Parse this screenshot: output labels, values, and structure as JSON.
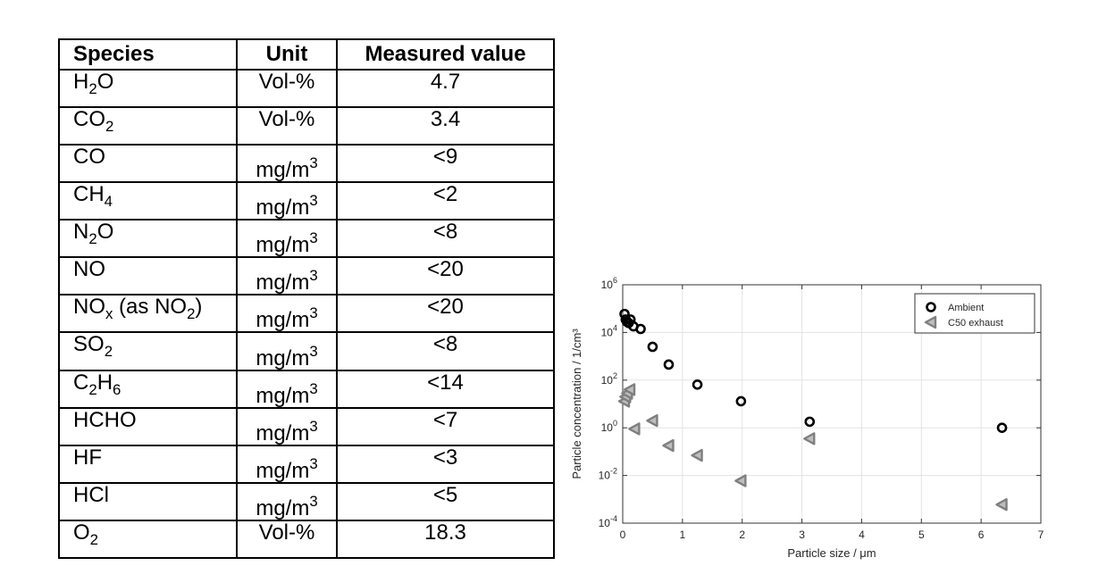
{
  "table": {
    "headers": [
      "Species",
      "Unit",
      "Measured value"
    ],
    "rows": [
      {
        "species": [
          [
            "H",
            ""
          ],
          [
            "2",
            "sub"
          ],
          [
            "O",
            ""
          ]
        ],
        "unit": [
          [
            "Vol-%",
            ""
          ]
        ],
        "value": "4.7"
      },
      {
        "species": [
          [
            "CO",
            ""
          ],
          [
            "2",
            "sub"
          ]
        ],
        "unit": [
          [
            "Vol-%",
            ""
          ]
        ],
        "value": "3.4"
      },
      {
        "species": [
          [
            "CO",
            ""
          ]
        ],
        "unit": [
          [
            "mg/m",
            ""
          ],
          [
            "3",
            "sup"
          ]
        ],
        "value": "<9"
      },
      {
        "species": [
          [
            "CH",
            ""
          ],
          [
            "4",
            "sub"
          ]
        ],
        "unit": [
          [
            "mg/m",
            ""
          ],
          [
            "3",
            "sup"
          ]
        ],
        "value": "<2"
      },
      {
        "species": [
          [
            "N",
            ""
          ],
          [
            "2",
            "sub"
          ],
          [
            "O",
            ""
          ]
        ],
        "unit": [
          [
            "mg/m",
            ""
          ],
          [
            "3",
            "sup"
          ]
        ],
        "value": "<8"
      },
      {
        "species": [
          [
            "NO",
            ""
          ]
        ],
        "unit": [
          [
            "mg/m",
            ""
          ],
          [
            "3",
            "sup"
          ]
        ],
        "value": "<20"
      },
      {
        "species": [
          [
            "NO",
            ""
          ],
          [
            "x",
            "sub"
          ],
          [
            " (as NO",
            ""
          ],
          [
            "2",
            "sub"
          ],
          [
            ")",
            ""
          ]
        ],
        "unit": [
          [
            "mg/m",
            ""
          ],
          [
            "3",
            "sup"
          ]
        ],
        "value": "<20"
      },
      {
        "species": [
          [
            "SO",
            ""
          ],
          [
            "2",
            "sub"
          ]
        ],
        "unit": [
          [
            "mg/m",
            ""
          ],
          [
            "3",
            "sup"
          ]
        ],
        "value": "<8"
      },
      {
        "species": [
          [
            "C",
            ""
          ],
          [
            "2",
            "sub"
          ],
          [
            "H",
            ""
          ],
          [
            "6",
            "sub"
          ]
        ],
        "unit": [
          [
            "mg/m",
            ""
          ],
          [
            "3",
            "sup"
          ]
        ],
        "value": "<14"
      },
      {
        "species": [
          [
            "HCHO",
            ""
          ]
        ],
        "unit": [
          [
            "mg/m",
            ""
          ],
          [
            "3",
            "sup"
          ]
        ],
        "value": "<7"
      },
      {
        "species": [
          [
            "HF",
            ""
          ]
        ],
        "unit": [
          [
            "mg/m",
            ""
          ],
          [
            "3",
            "sup"
          ]
        ],
        "value": "<3"
      },
      {
        "species": [
          [
            "HCl",
            ""
          ]
        ],
        "unit": [
          [
            "mg/m",
            ""
          ],
          [
            "3",
            "sup"
          ]
        ],
        "value": "<5"
      },
      {
        "species": [
          [
            "O",
            ""
          ],
          [
            "2",
            "sub"
          ]
        ],
        "unit": [
          [
            "Vol-%",
            ""
          ]
        ],
        "value": "18.3"
      }
    ]
  },
  "chart_data": {
    "type": "scatter",
    "xlabel": "Particle size / μm",
    "ylabel": "Particle concentration / 1/cm³",
    "xlim": [
      0,
      7
    ],
    "ylim": [
      0.0001,
      1000000
    ],
    "yscale": "log",
    "grid": true,
    "legend_position": "top-right",
    "x_ticks": [
      0,
      1,
      2,
      3,
      4,
      5,
      6,
      7
    ],
    "y_ticks": [
      0.0001,
      0.01,
      1,
      100,
      10000,
      1000000
    ],
    "x_tick_labels": [
      "0",
      "1",
      "2",
      "3",
      "4",
      "5",
      "6",
      "7"
    ],
    "y_tick_labels": [
      [
        "10",
        "-4"
      ],
      [
        "10",
        "-2"
      ],
      [
        "10",
        "0"
      ],
      [
        "10",
        "2"
      ],
      [
        "10",
        "4"
      ],
      [
        "10",
        "6"
      ]
    ],
    "series": [
      {
        "name": "Ambient",
        "marker": "circle",
        "color": "#000000",
        "points": [
          [
            0.03,
            60000
          ],
          [
            0.05,
            35000
          ],
          [
            0.07,
            28000
          ],
          [
            0.1,
            25000
          ],
          [
            0.13,
            35000
          ],
          [
            0.18,
            18000
          ],
          [
            0.3,
            14000
          ],
          [
            0.5,
            2500
          ],
          [
            0.77,
            450
          ],
          [
            1.25,
            65
          ],
          [
            1.98,
            13
          ],
          [
            3.13,
            1.8
          ],
          [
            6.35,
            1.0
          ]
        ]
      },
      {
        "name": "C50 exhaust",
        "marker": "triangle-left",
        "color": "#7f7f7f",
        "points": [
          [
            0.03,
            13
          ],
          [
            0.05,
            20
          ],
          [
            0.08,
            28
          ],
          [
            0.12,
            40
          ],
          [
            0.2,
            0.9
          ],
          [
            0.5,
            2.0
          ],
          [
            0.77,
            0.18
          ],
          [
            1.25,
            0.07
          ],
          [
            1.98,
            0.006
          ],
          [
            3.13,
            0.35
          ],
          [
            6.35,
            0.0006
          ]
        ]
      }
    ]
  }
}
